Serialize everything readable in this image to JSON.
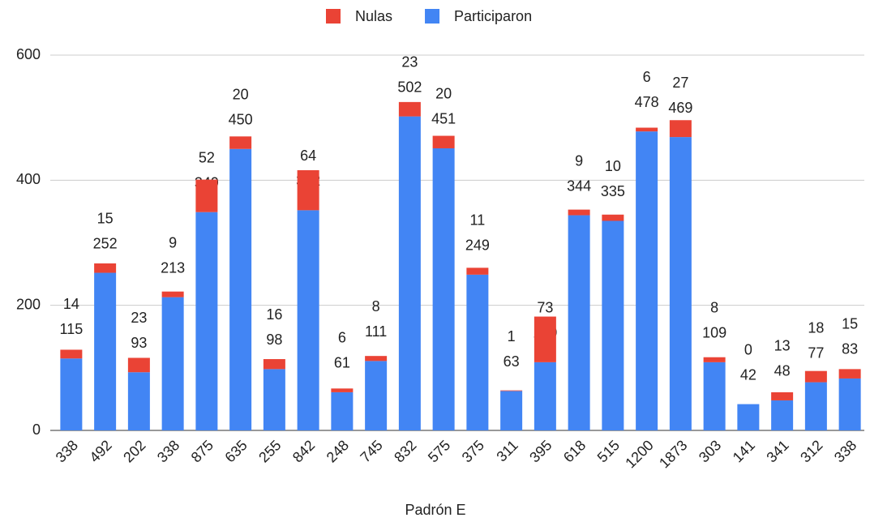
{
  "chart_data": {
    "type": "stacked_bar",
    "categories": [
      "338",
      "492",
      "202",
      "338",
      "875",
      "635",
      "255",
      "842",
      "248",
      "745",
      "832",
      "575",
      "375",
      "311",
      "395",
      "618",
      "515",
      "1200",
      "1873",
      "303",
      "141",
      "341",
      "312",
      "338"
    ],
    "series": [
      {
        "name": "Nulas",
        "color": "#ea4335",
        "values": [
          14,
          15,
          23,
          9,
          52,
          20,
          16,
          64,
          6,
          8,
          23,
          20,
          11,
          1,
          73,
          9,
          10,
          6,
          27,
          8,
          0,
          13,
          18,
          15
        ]
      },
      {
        "name": "Participaron",
        "color": "#4285f4",
        "values": [
          115,
          252,
          93,
          213,
          349,
          450,
          98,
          352,
          61,
          111,
          502,
          451,
          249,
          63,
          109,
          344,
          335,
          478,
          469,
          109,
          42,
          48,
          77,
          83
        ]
      }
    ],
    "x_label": "Padrón E",
    "ylim": [
      0,
      600
    ],
    "yticks": [
      0,
      200,
      400,
      600
    ],
    "grid": true,
    "legend": "top"
  }
}
